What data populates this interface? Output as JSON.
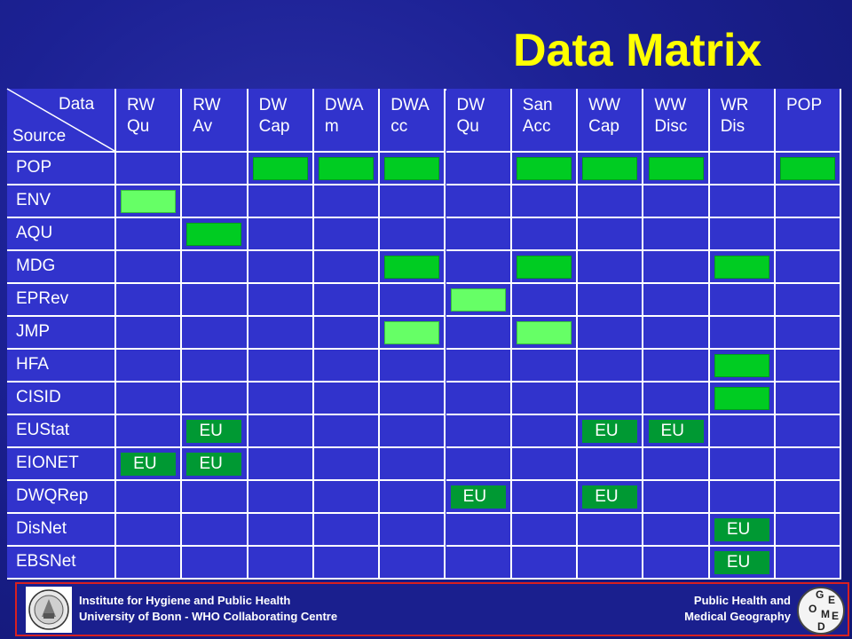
{
  "slide": {
    "title": "Data Matrix",
    "corner": {
      "data_label": "Data",
      "source_label": "Source"
    },
    "columns": [
      "RW\nQu",
      "RW\nAv",
      "DW\nCap",
      "DWA\nm",
      "DWA\ncc",
      "DW\nQu",
      "San\nAcc",
      "WW\nCap",
      "WW\nDisc",
      "WR\nDis",
      "POP"
    ],
    "rows": [
      {
        "label": "POP",
        "marks": [
          "",
          "",
          "dark",
          "dark",
          "dark",
          "",
          "dark",
          "dark",
          "dark",
          "",
          "dark"
        ]
      },
      {
        "label": "ENV",
        "marks": [
          "light",
          "",
          "",
          "",
          "",
          "",
          "",
          "",
          "",
          "",
          ""
        ]
      },
      {
        "label": "AQU",
        "marks": [
          "",
          "dark",
          "",
          "",
          "",
          "",
          "",
          "",
          "",
          "",
          ""
        ]
      },
      {
        "label": "MDG",
        "marks": [
          "",
          "",
          "",
          "",
          "dark",
          "",
          "dark",
          "",
          "",
          "dark",
          ""
        ]
      },
      {
        "label": "EPRev",
        "marks": [
          "",
          "",
          "",
          "",
          "",
          "light",
          "",
          "",
          "",
          "",
          ""
        ]
      },
      {
        "label": "JMP",
        "marks": [
          "",
          "",
          "",
          "",
          "light",
          "",
          "light",
          "",
          "",
          "",
          ""
        ]
      },
      {
        "label": "HFA",
        "marks": [
          "",
          "",
          "",
          "",
          "",
          "",
          "",
          "",
          "",
          "dark",
          ""
        ]
      },
      {
        "label": "CISID",
        "marks": [
          "",
          "",
          "",
          "",
          "",
          "",
          "",
          "",
          "",
          "dark",
          ""
        ]
      },
      {
        "label": "EUStat",
        "marks": [
          "",
          "EU",
          "",
          "",
          "",
          "",
          "",
          "EU",
          "EU",
          "",
          ""
        ]
      },
      {
        "label": "EIONET",
        "marks": [
          "EU",
          "EU",
          "",
          "",
          "",
          "",
          "",
          "",
          "",
          "",
          ""
        ]
      },
      {
        "label": "DWQRep",
        "marks": [
          "",
          "",
          "",
          "",
          "",
          "EU",
          "",
          "EU",
          "",
          "",
          ""
        ]
      },
      {
        "label": "DisNet",
        "marks": [
          "",
          "",
          "",
          "",
          "",
          "",
          "",
          "",
          "",
          "EU",
          ""
        ]
      },
      {
        "label": "EBSNet",
        "marks": [
          "",
          "",
          "",
          "",
          "",
          "",
          "",
          "",
          "",
          "EU",
          ""
        ]
      }
    ],
    "colors": {
      "dark_mark": "#00cc22",
      "light_mark": "#66ff66",
      "eu_mark": "#009933",
      "title": "#ffff00",
      "grid": "#ffffff"
    }
  },
  "footer": {
    "left_line1": "Institute for Hygiene and Public Health",
    "left_line2": "University of Bonn   -   WHO Collaborating Centre",
    "right_line1": "Public Health and",
    "right_line2": "Medical Geography",
    "left_logo": "university-seal-logo",
    "right_logo": "geomed-logo",
    "logo_letters": [
      "G",
      "E",
      "O",
      "M",
      "E",
      "D"
    ]
  }
}
